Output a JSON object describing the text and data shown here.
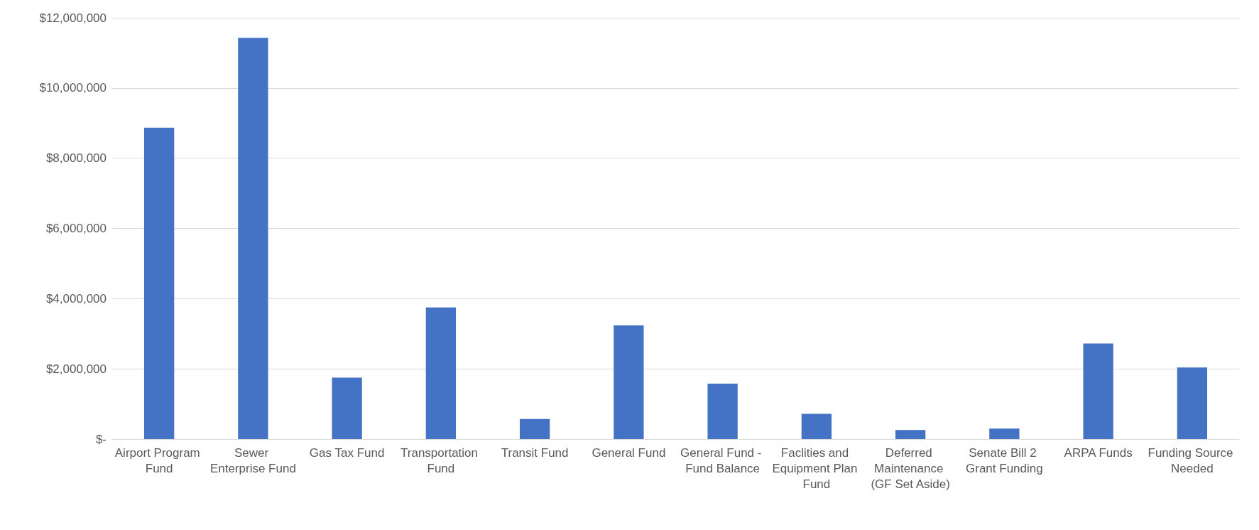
{
  "chart_data": {
    "type": "bar",
    "categories": [
      "Airport Program Fund",
      "Sewer Enterprise Fund",
      "Gas Tax Fund",
      "Transportation Fund",
      "Transit Fund",
      "General Fund",
      "General Fund - Fund Balance",
      "Faclities and Equipment Plan Fund",
      "Deferred Maintenance (GF Set Aside)",
      "Senate Bill 2 Grant Funding",
      "ARPA Funds",
      "Funding Source Needed"
    ],
    "values": [
      8870000,
      11430000,
      1750000,
      3750000,
      570000,
      3240000,
      1580000,
      720000,
      260000,
      300000,
      2720000,
      2040000
    ],
    "color": "#4472c4",
    "ylim": [
      0,
      12000000
    ],
    "yticks": [
      {
        "value": 0,
        "label": "$-"
      },
      {
        "value": 2000000,
        "label": "$2,000,000"
      },
      {
        "value": 4000000,
        "label": "$4,000,000"
      },
      {
        "value": 6000000,
        "label": "$6,000,000"
      },
      {
        "value": 8000000,
        "label": "$8,000,000"
      },
      {
        "value": 10000000,
        "label": "$10,000,000"
      },
      {
        "value": 12000000,
        "label": "$12,000,000"
      }
    ],
    "grid": "y"
  }
}
